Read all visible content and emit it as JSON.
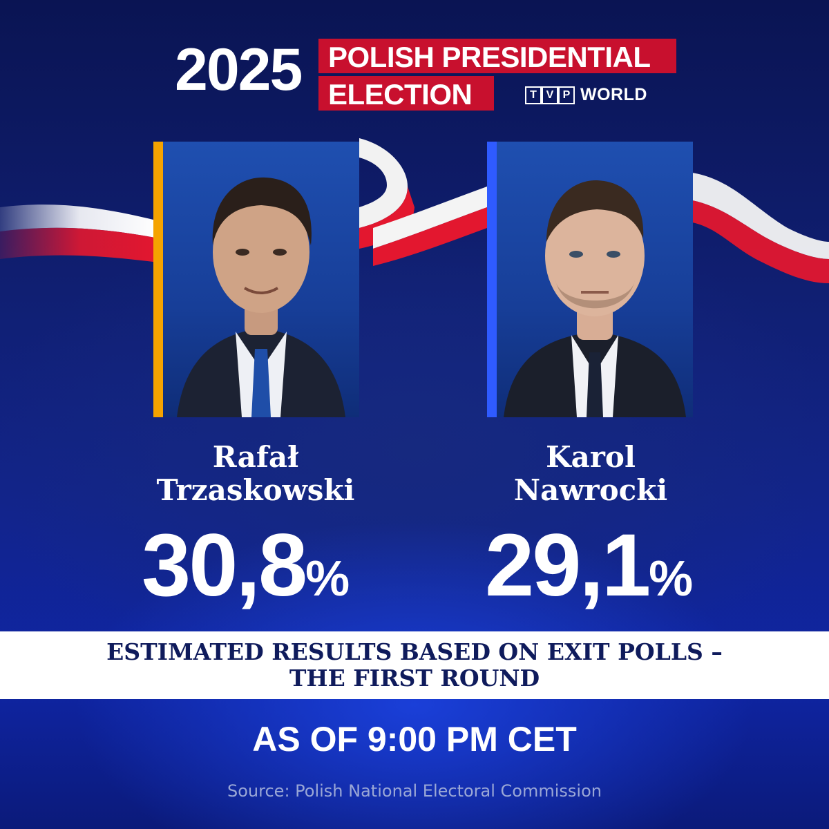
{
  "header": {
    "year": "2025",
    "title_line_1": "POLISH PRESIDENTIAL",
    "title_line_2": "ELECTION",
    "logo_letters": [
      "T",
      "V",
      "P"
    ],
    "logo_word": "WORLD",
    "accent_red": "#c8102e"
  },
  "candidates": [
    {
      "name_line_1": "Rafał",
      "name_line_2": "Trzaskowski",
      "percent": "30,8",
      "percent_symbol": "%",
      "stripe_color": "#f5a300"
    },
    {
      "name_line_1": "Karol",
      "name_line_2": "Nawrocki",
      "percent": "29,1",
      "percent_symbol": "%",
      "stripe_color": "#2f5bff"
    }
  ],
  "band": {
    "line_1": "ESTIMATED RESULTS BASED ON EXIT POLLS –",
    "line_2": "THE FIRST ROUND"
  },
  "as_of": "AS OF 9:00 PM CET",
  "source": "Source: Polish National Electoral Commission",
  "colors": {
    "background_navy": "#0b1a6e",
    "band_text": "#0f1b5c"
  }
}
